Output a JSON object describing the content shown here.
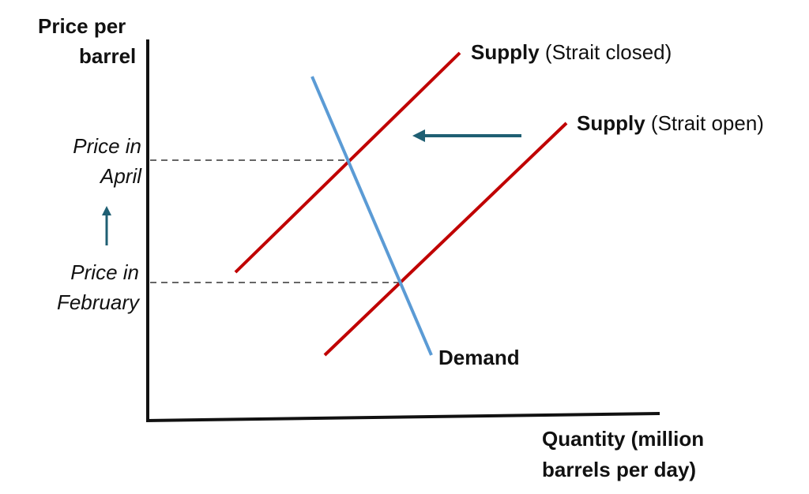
{
  "axes": {
    "y_label_line1": "Price per",
    "y_label_line2": "barrel",
    "x_label_line1": "Quantity (million",
    "x_label_line2": "barrels per day)"
  },
  "price_levels": {
    "april_line1": "Price in",
    "april_line2": "April",
    "february_line1": "Price in",
    "february_line2": "February"
  },
  "curves": {
    "supply_closed": {
      "name": "Supply",
      "qualifier": "(Strait closed)",
      "color": "#c00000"
    },
    "supply_open": {
      "name": "Supply",
      "qualifier": "(Strait open)",
      "color": "#c00000"
    },
    "demand": {
      "name": "Demand",
      "color": "#5b9bd5"
    }
  },
  "colors": {
    "arrow": "#1f5f73",
    "axis": "#111111",
    "dashed": "#333333"
  }
}
